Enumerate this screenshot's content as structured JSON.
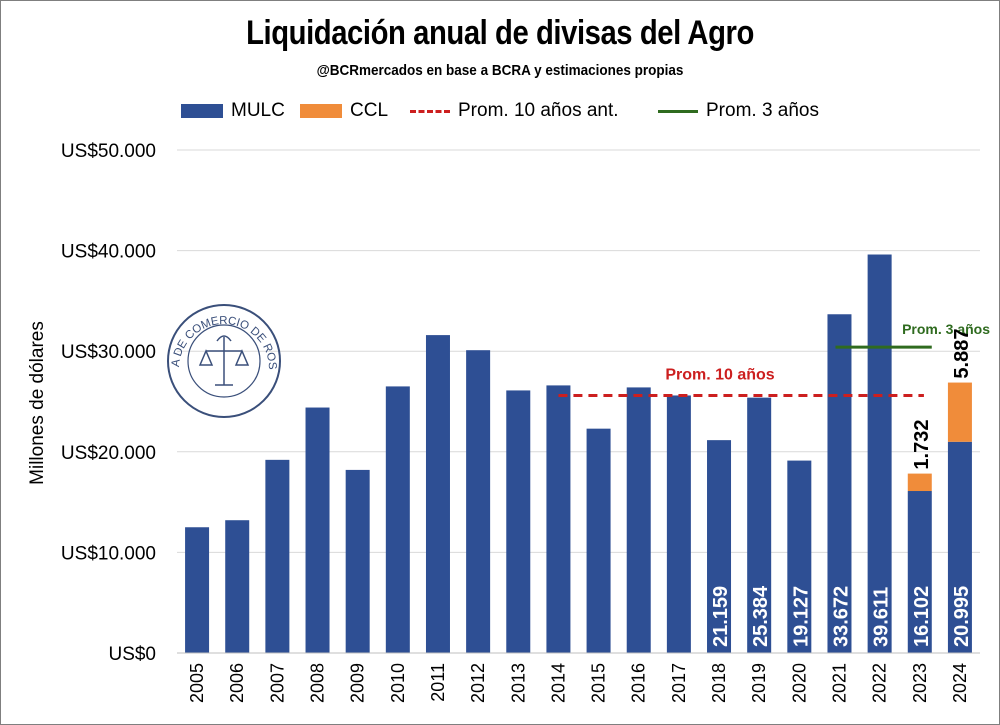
{
  "title": "Liquidación anual de divisas del Agro",
  "subtitle": "@BCRmercados en base a BCRA y estimaciones propias",
  "logo_text": "BOLSA DE COMERCIO DE ROSARIO",
  "colors": {
    "mulc": "#2e4f94",
    "ccl": "#f08c3a",
    "prom10": "#cc1f1f",
    "prom3": "#2f6b1f",
    "grid": "#d9d9d9",
    "label_white": "#ffffff"
  },
  "chart_data": {
    "type": "bar",
    "stacked": true,
    "title": "Liquidación anual de divisas del Agro",
    "ylabel": "Millones de dólares",
    "ylim": [
      0,
      50000
    ],
    "yticks": [
      {
        "value": 0,
        "label": "US$0"
      },
      {
        "value": 10000,
        "label": "US$10.000"
      },
      {
        "value": 20000,
        "label": "US$20.000"
      },
      {
        "value": 30000,
        "label": "US$30.000"
      },
      {
        "value": 40000,
        "label": "US$40.000"
      },
      {
        "value": 50000,
        "label": "US$50.000"
      }
    ],
    "grid": true,
    "legend_position": "top",
    "categories": [
      "2005",
      "2006",
      "2007",
      "2008",
      "2009",
      "2010",
      "2011",
      "2012",
      "2013",
      "2014",
      "2015",
      "2016",
      "2017",
      "2018",
      "2019",
      "2020",
      "2021",
      "2022",
      "2023",
      "2024"
    ],
    "series": [
      {
        "name": "MULC",
        "values": [
          12500,
          13200,
          19200,
          24400,
          18200,
          26500,
          31600,
          30100,
          26100,
          26600,
          22300,
          26400,
          25600,
          21159,
          25384,
          19127,
          33672,
          39611,
          16102,
          20995
        ],
        "data_labels": [
          null,
          null,
          null,
          null,
          null,
          null,
          null,
          null,
          null,
          null,
          null,
          null,
          null,
          "21.159",
          "25.384",
          "19.127",
          "33.672",
          "39.611",
          "16.102",
          "20.995"
        ]
      },
      {
        "name": "CCL",
        "values": [
          0,
          0,
          0,
          0,
          0,
          0,
          0,
          0,
          0,
          0,
          0,
          0,
          0,
          0,
          0,
          0,
          0,
          0,
          1732,
          5887
        ],
        "data_labels": [
          null,
          null,
          null,
          null,
          null,
          null,
          null,
          null,
          null,
          null,
          null,
          null,
          null,
          null,
          null,
          null,
          null,
          null,
          "1.732",
          "5.887"
        ]
      }
    ],
    "reference_lines": [
      {
        "legend": "Prom. 10 años ant.",
        "label": "Prom. 10 años",
        "value": 25600,
        "from": "2014",
        "to": "2024",
        "style": "dashed"
      },
      {
        "legend": "Prom. 3 años",
        "label": "Prom. 3 años",
        "value": 30400,
        "from": "2021",
        "to": "2023",
        "style": "solid"
      }
    ]
  }
}
